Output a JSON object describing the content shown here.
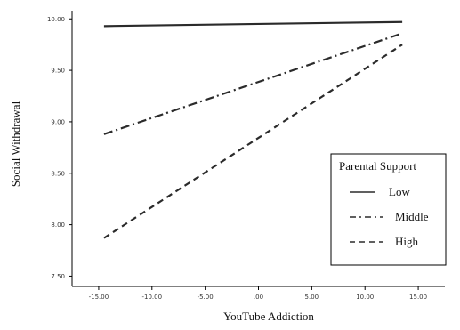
{
  "chart_data": {
    "type": "line",
    "xlabel": "YouTube Addiction",
    "ylabel": "Social Withdrawal",
    "xlim": [
      -17.5,
      17.5
    ],
    "ylim": [
      7.4,
      10.08
    ],
    "xticks": [
      -15,
      -10,
      -5,
      0,
      5,
      10,
      15
    ],
    "xtick_labels": [
      "-15.00",
      "-10.00",
      "-5.00",
      ".00",
      "5.00",
      "10.00",
      "15.00"
    ],
    "yticks": [
      7.5,
      8.0,
      8.5,
      9.0,
      9.5,
      10.0
    ],
    "ytick_labels": [
      "7.50",
      "8.00",
      "8.50",
      "9.00",
      "9.50",
      "10.00"
    ],
    "grid": false,
    "legend": {
      "title": "Parental Support",
      "placement": "bottom-right"
    },
    "series": [
      {
        "name": "Low",
        "style": "solid",
        "x": [
          -14.5,
          13.5
        ],
        "y": [
          9.93,
          9.97
        ]
      },
      {
        "name": "Middle",
        "style": "dashdot",
        "x": [
          -14.5,
          13.5
        ],
        "y": [
          8.88,
          9.86
        ]
      },
      {
        "name": "High",
        "style": "dashed",
        "x": [
          -14.5,
          13.5
        ],
        "y": [
          7.87,
          9.75
        ]
      }
    ]
  }
}
